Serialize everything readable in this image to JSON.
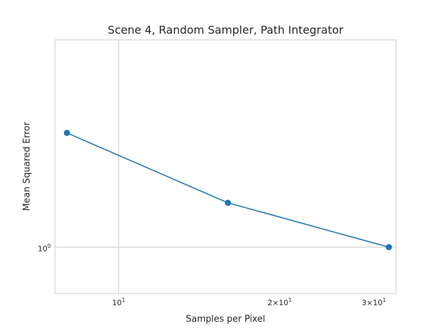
{
  "chart_data": {
    "type": "line",
    "title": "Scene 4, Random Sampler, Path Integrator",
    "xlabel": "Samples per Pixel",
    "ylabel": "Mean Squared Error",
    "xscale": "log",
    "yscale": "log",
    "xlim": [
      7.6,
      33.0
    ],
    "ylim": [
      0.88,
      1.77
    ],
    "grid": true,
    "x_ticks": [
      {
        "value": 10,
        "base": "10",
        "exp": "1",
        "mult": ""
      },
      {
        "value": 20,
        "base": "10",
        "exp": "1",
        "mult": "2×"
      },
      {
        "value": 30,
        "base": "10",
        "exp": "1",
        "mult": "3×"
      }
    ],
    "y_ticks": [
      {
        "value": 1,
        "base": "10",
        "exp": "0"
      }
    ],
    "series": [
      {
        "color": "#1f77b4",
        "x": [
          8,
          16,
          32
        ],
        "y": [
          1.37,
          1.13,
          1.0
        ]
      }
    ]
  }
}
